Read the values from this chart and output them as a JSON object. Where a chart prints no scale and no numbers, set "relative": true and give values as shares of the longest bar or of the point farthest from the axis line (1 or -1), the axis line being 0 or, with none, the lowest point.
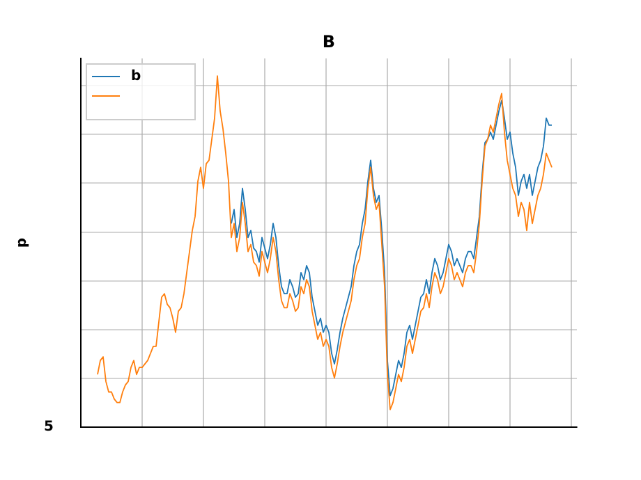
{
  "chart_data": {
    "type": "line",
    "title": "B",
    "ylabel": "p",
    "relative": true,
    "grid": true,
    "legend": "top left",
    "marker": "none",
    "annotations": [
      "5"
    ],
    "categories": [
      null,
      null,
      null,
      null,
      null,
      null,
      null,
      null,
      null,
      null,
      null,
      null,
      null,
      null,
      null,
      null,
      null,
      null,
      null,
      null,
      null,
      null,
      null,
      null,
      null,
      null,
      null,
      null,
      null,
      null,
      null,
      null,
      null,
      null,
      null,
      null,
      null,
      null,
      null,
      null,
      null,
      null,
      null,
      null,
      null,
      null,
      null,
      null,
      null,
      null,
      null,
      null,
      null,
      null,
      null,
      null,
      null,
      null,
      null,
      null,
      null,
      null,
      null,
      null,
      null,
      null,
      null,
      null,
      null,
      null,
      null,
      null,
      null,
      null,
      null,
      null,
      null,
      null,
      null,
      null,
      null,
      null,
      null,
      null,
      null,
      null,
      null,
      null,
      null,
      null,
      null,
      null,
      null,
      null,
      null,
      null,
      null,
      null,
      null,
      null,
      null,
      null,
      null,
      null,
      null,
      null,
      null,
      null,
      null,
      null,
      null,
      null,
      null,
      null,
      null,
      null,
      null,
      null,
      null,
      null,
      null,
      null,
      null,
      null,
      null,
      null,
      null,
      null,
      null,
      null,
      null,
      null,
      null,
      null,
      null,
      null,
      null,
      null,
      null,
      null,
      null,
      null,
      null,
      null,
      null,
      null,
      null,
      null,
      null,
      null,
      null,
      null,
      null,
      null,
      null,
      null,
      null,
      null,
      null,
      null,
      null,
      null,
      null,
      null
    ],
    "series": [
      {
        "name": "b",
        "color": "#1f77b4",
        "values": [
          null,
          null,
          null,
          null,
          null,
          null,
          null,
          null,
          null,
          null,
          null,
          null,
          null,
          null,
          null,
          null,
          null,
          null,
          null,
          null,
          null,
          null,
          null,
          null,
          null,
          null,
          null,
          null,
          null,
          null,
          null,
          null,
          null,
          null,
          null,
          null,
          null,
          null,
          null,
          null,
          null,
          null,
          null,
          null,
          null,
          null,
          null,
          null,
          0.58,
          0.62,
          0.54,
          0.58,
          0.68,
          0.62,
          0.54,
          0.56,
          0.51,
          0.5,
          0.47,
          0.54,
          0.51,
          0.48,
          0.52,
          0.58,
          0.54,
          0.46,
          0.4,
          0.38,
          0.38,
          0.42,
          0.4,
          0.37,
          0.38,
          0.44,
          0.42,
          0.46,
          0.44,
          0.37,
          0.33,
          0.29,
          0.31,
          0.27,
          0.29,
          0.27,
          0.21,
          0.18,
          0.22,
          0.27,
          0.31,
          0.34,
          0.37,
          0.4,
          0.46,
          0.5,
          0.52,
          0.58,
          0.62,
          0.7,
          0.76,
          0.68,
          0.64,
          0.66,
          0.56,
          0.44,
          0.19,
          0.09,
          0.11,
          0.15,
          0.19,
          0.17,
          0.21,
          0.27,
          0.29,
          0.25,
          0.29,
          0.33,
          0.37,
          0.38,
          0.42,
          0.38,
          0.44,
          0.48,
          0.46,
          0.42,
          0.44,
          0.48,
          0.52,
          0.5,
          0.46,
          0.48,
          0.46,
          0.44,
          0.48,
          0.5,
          0.5,
          0.48,
          0.54,
          0.6,
          0.72,
          0.81,
          0.82,
          0.84,
          0.82,
          0.86,
          0.9,
          0.93,
          0.88,
          0.82,
          0.84,
          0.78,
          0.74,
          0.66,
          0.7,
          0.72,
          0.68,
          0.72,
          0.66,
          0.7,
          0.74,
          0.76,
          0.8,
          0.88,
          0.86,
          0.86
        ]
      },
      {
        "color": "#ff7f0e",
        "values": [
          0.15,
          0.19,
          0.2,
          0.13,
          0.1,
          0.1,
          0.08,
          0.07,
          0.07,
          0.1,
          0.12,
          0.13,
          0.17,
          0.19,
          0.15,
          0.17,
          0.17,
          0.18,
          0.19,
          0.21,
          0.23,
          0.23,
          0.3,
          0.37,
          0.38,
          0.35,
          0.34,
          0.31,
          0.27,
          0.33,
          0.34,
          0.38,
          0.44,
          0.5,
          0.56,
          0.6,
          0.7,
          0.74,
          0.68,
          0.75,
          0.76,
          0.82,
          0.88,
          1.0,
          0.9,
          0.85,
          0.78,
          0.7,
          0.54,
          0.58,
          0.5,
          0.54,
          0.64,
          0.58,
          0.5,
          0.52,
          0.47,
          0.46,
          0.43,
          0.5,
          0.47,
          0.44,
          0.48,
          0.54,
          0.5,
          0.42,
          0.36,
          0.34,
          0.34,
          0.38,
          0.36,
          0.33,
          0.34,
          0.4,
          0.38,
          0.42,
          0.4,
          0.33,
          0.29,
          0.25,
          0.27,
          0.23,
          0.25,
          0.23,
          0.17,
          0.14,
          0.18,
          0.23,
          0.27,
          0.3,
          0.33,
          0.36,
          0.42,
          0.46,
          0.48,
          0.54,
          0.58,
          0.68,
          0.74,
          0.66,
          0.62,
          0.64,
          0.52,
          0.4,
          0.15,
          0.05,
          0.07,
          0.11,
          0.15,
          0.13,
          0.17,
          0.23,
          0.25,
          0.21,
          0.25,
          0.29,
          0.33,
          0.34,
          0.38,
          0.34,
          0.4,
          0.44,
          0.42,
          0.38,
          0.4,
          0.44,
          0.48,
          0.46,
          0.42,
          0.44,
          0.42,
          0.4,
          0.44,
          0.46,
          0.46,
          0.44,
          0.5,
          0.58,
          0.7,
          0.8,
          0.82,
          0.86,
          0.84,
          0.88,
          0.92,
          0.95,
          0.84,
          0.76,
          0.72,
          0.68,
          0.66,
          0.6,
          0.64,
          0.62,
          0.56,
          0.64,
          0.58,
          0.62,
          0.66,
          0.68,
          0.72,
          0.78,
          0.76,
          0.74
        ]
      }
    ]
  }
}
